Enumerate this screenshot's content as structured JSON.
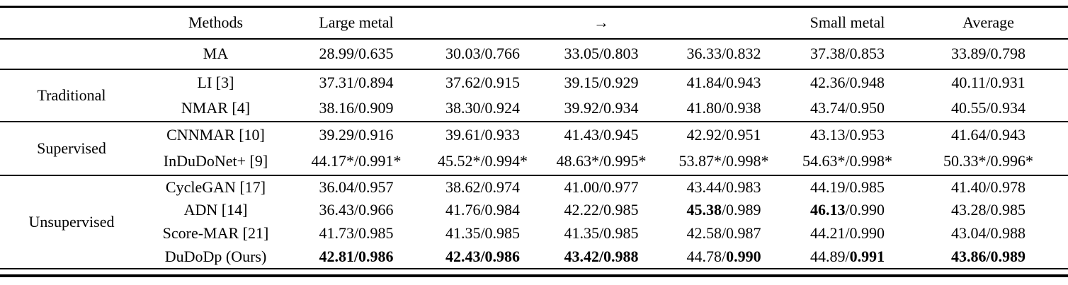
{
  "table": {
    "header": {
      "group": "",
      "methods": "Methods",
      "columns": [
        "Large metal",
        "",
        "→",
        "",
        "Small metal",
        "Average"
      ]
    },
    "sections": [
      {
        "group": "",
        "rows": [
          {
            "method": "MA",
            "cells": [
              [
                {
                  "t": "28.99/0.635",
                  "b": false
                }
              ],
              [
                {
                  "t": "30.03/0.766",
                  "b": false
                }
              ],
              [
                {
                  "t": "33.05/0.803",
                  "b": false
                }
              ],
              [
                {
                  "t": "36.33/0.832",
                  "b": false
                }
              ],
              [
                {
                  "t": "37.38/0.853",
                  "b": false
                }
              ],
              [
                {
                  "t": "33.89/0.798",
                  "b": false
                }
              ]
            ]
          }
        ]
      },
      {
        "group": "Traditional",
        "rows": [
          {
            "method": "LI [3]",
            "cells": [
              [
                {
                  "t": "37.31/0.894",
                  "b": false
                }
              ],
              [
                {
                  "t": "37.62/0.915",
                  "b": false
                }
              ],
              [
                {
                  "t": "39.15/0.929",
                  "b": false
                }
              ],
              [
                {
                  "t": "41.84/0.943",
                  "b": false
                }
              ],
              [
                {
                  "t": "42.36/0.948",
                  "b": false
                }
              ],
              [
                {
                  "t": "40.11/0.931",
                  "b": false
                }
              ]
            ]
          },
          {
            "method": "NMAR [4]",
            "cells": [
              [
                {
                  "t": "38.16/0.909",
                  "b": false
                }
              ],
              [
                {
                  "t": "38.30/0.924",
                  "b": false
                }
              ],
              [
                {
                  "t": "39.92/0.934",
                  "b": false
                }
              ],
              [
                {
                  "t": "41.80/0.938",
                  "b": false
                }
              ],
              [
                {
                  "t": "43.74/0.950",
                  "b": false
                }
              ],
              [
                {
                  "t": "40.55/0.934",
                  "b": false
                }
              ]
            ]
          }
        ]
      },
      {
        "group": "Supervised",
        "rows": [
          {
            "method": "CNNMAR [10]",
            "cells": [
              [
                {
                  "t": "39.29/0.916",
                  "b": false
                }
              ],
              [
                {
                  "t": "39.61/0.933",
                  "b": false
                }
              ],
              [
                {
                  "t": "41.43/0.945",
                  "b": false
                }
              ],
              [
                {
                  "t": "42.92/0.951",
                  "b": false
                }
              ],
              [
                {
                  "t": "43.13/0.953",
                  "b": false
                }
              ],
              [
                {
                  "t": "41.64/0.943",
                  "b": false
                }
              ]
            ]
          },
          {
            "method": "InDuDoNet+ [9]",
            "cells": [
              [
                {
                  "t": "44.17*/0.991*",
                  "b": false
                }
              ],
              [
                {
                  "t": "45.52*/0.994*",
                  "b": false
                }
              ],
              [
                {
                  "t": "48.63*/0.995*",
                  "b": false
                }
              ],
              [
                {
                  "t": "53.87*/0.998*",
                  "b": false
                }
              ],
              [
                {
                  "t": "54.63*/0.998*",
                  "b": false
                }
              ],
              [
                {
                  "t": "50.33*/0.996*",
                  "b": false
                }
              ]
            ]
          }
        ]
      },
      {
        "group": "Unsupervised",
        "rows": [
          {
            "method": "CycleGAN [17]",
            "cells": [
              [
                {
                  "t": "36.04/0.957",
                  "b": false
                }
              ],
              [
                {
                  "t": "38.62/0.974",
                  "b": false
                }
              ],
              [
                {
                  "t": "41.00/0.977",
                  "b": false
                }
              ],
              [
                {
                  "t": "43.44/0.983",
                  "b": false
                }
              ],
              [
                {
                  "t": "44.19/0.985",
                  "b": false
                }
              ],
              [
                {
                  "t": "41.40/0.978",
                  "b": false
                }
              ]
            ]
          },
          {
            "method": "ADN [14]",
            "cells": [
              [
                {
                  "t": "36.43/0.966",
                  "b": false
                }
              ],
              [
                {
                  "t": "41.76/0.984",
                  "b": false
                }
              ],
              [
                {
                  "t": "42.22/0.985",
                  "b": false
                }
              ],
              [
                {
                  "t": "45.38",
                  "b": true
                },
                {
                  "t": "/0.989",
                  "b": false
                }
              ],
              [
                {
                  "t": "46.13",
                  "b": true
                },
                {
                  "t": "/0.990",
                  "b": false
                }
              ],
              [
                {
                  "t": "43.28/0.985",
                  "b": false
                }
              ]
            ]
          },
          {
            "method": "Score-MAR [21]",
            "cells": [
              [
                {
                  "t": "41.73/0.985",
                  "b": false
                }
              ],
              [
                {
                  "t": "41.35/0.985",
                  "b": false
                }
              ],
              [
                {
                  "t": "41.35/0.985",
                  "b": false
                }
              ],
              [
                {
                  "t": "42.58/0.987",
                  "b": false
                }
              ],
              [
                {
                  "t": "44.21/0.990",
                  "b": false
                }
              ],
              [
                {
                  "t": "43.04/0.988",
                  "b": false
                }
              ]
            ]
          },
          {
            "method": "DuDoDp (Ours)",
            "cells": [
              [
                {
                  "t": "42.81/0.986",
                  "b": true
                }
              ],
              [
                {
                  "t": "42.43/0.986",
                  "b": true
                }
              ],
              [
                {
                  "t": "43.42/0.988",
                  "b": true
                }
              ],
              [
                {
                  "t": "44.78/",
                  "b": false
                },
                {
                  "t": "0.990",
                  "b": true
                }
              ],
              [
                {
                  "t": "44.89/",
                  "b": false
                },
                {
                  "t": "0.991",
                  "b": true
                }
              ],
              [
                {
                  "t": "43.86/0.989",
                  "b": true
                }
              ]
            ]
          }
        ]
      }
    ]
  }
}
